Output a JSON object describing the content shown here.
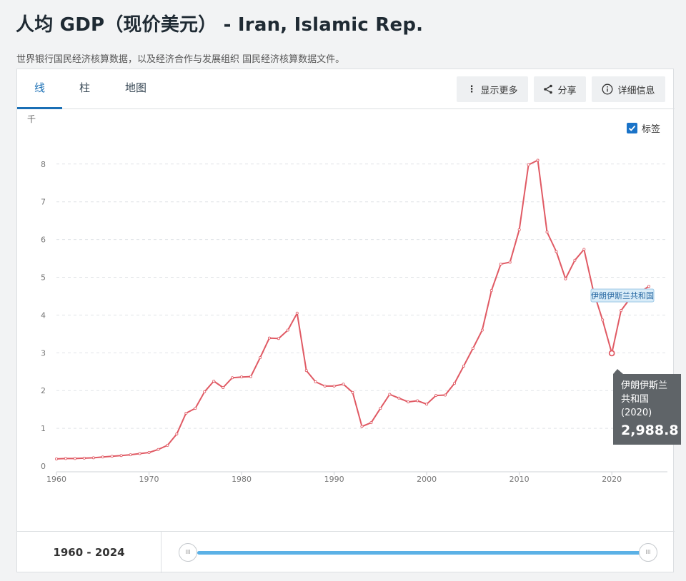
{
  "header": {
    "title": "人均 GDP（现价美元） - Iran, Islamic Rep.",
    "source": "世界银行国民经济核算数据，以及经济合作与发展组织 国民经济核算数据文件。"
  },
  "tabs": [
    {
      "label": "线",
      "active": true
    },
    {
      "label": "柱",
      "active": false
    },
    {
      "label": "地图",
      "active": false
    }
  ],
  "toolbar": {
    "more_label": "显示更多",
    "share_label": "分享",
    "details_label": "详细信息"
  },
  "labels_toggle": {
    "label": "标签",
    "checked": true
  },
  "range": {
    "label": "1960 - 2024"
  },
  "colors": {
    "line": "#e05a64",
    "accent": "#1a6fb5",
    "slider": "#5bb1e6",
    "tooltip_bg": "#5f6468"
  },
  "chart_data": {
    "type": "line",
    "unit_label": "千",
    "series": [
      {
        "name": "伊朗伊斯兰共和国",
        "x": [
          1960,
          1961,
          1962,
          1963,
          1964,
          1965,
          1966,
          1967,
          1968,
          1969,
          1970,
          1971,
          1972,
          1973,
          1974,
          1975,
          1976,
          1977,
          1978,
          1979,
          1980,
          1981,
          1982,
          1983,
          1984,
          1985,
          1986,
          1987,
          1988,
          1989,
          1990,
          1991,
          1992,
          1993,
          1994,
          1995,
          1996,
          1997,
          1998,
          1999,
          2000,
          2001,
          2002,
          2003,
          2004,
          2005,
          2006,
          2007,
          2008,
          2009,
          2010,
          2011,
          2012,
          2013,
          2014,
          2015,
          2016,
          2017,
          2018,
          2019,
          2020,
          2021,
          2022,
          2023,
          2024
        ],
        "y": [
          0.19,
          0.2,
          0.2,
          0.21,
          0.22,
          0.24,
          0.26,
          0.28,
          0.3,
          0.33,
          0.36,
          0.44,
          0.55,
          0.85,
          1.4,
          1.53,
          1.97,
          2.25,
          2.08,
          2.34,
          2.36,
          2.37,
          2.87,
          3.39,
          3.38,
          3.6,
          4.05,
          2.53,
          2.23,
          2.12,
          2.12,
          2.17,
          1.95,
          1.05,
          1.15,
          1.53,
          1.9,
          1.8,
          1.7,
          1.73,
          1.64,
          1.87,
          1.88,
          2.19,
          2.65,
          3.12,
          3.6,
          4.65,
          5.35,
          5.4,
          6.26,
          7.98,
          8.1,
          6.2,
          5.68,
          4.96,
          5.45,
          5.74,
          4.64,
          3.87,
          2.9888,
          4.12,
          4.45,
          4.6,
          4.76
        ]
      }
    ],
    "xlim": [
      1960,
      2024
    ],
    "ylim": [
      0,
      8.5
    ],
    "x_ticks": [
      "1960",
      "1970",
      "1980",
      "1990",
      "2000",
      "2010",
      "2020"
    ],
    "y_ticks": [
      "0",
      "1",
      "2",
      "3",
      "4",
      "5",
      "6",
      "7",
      "8"
    ],
    "grid": true,
    "end_label": "伊朗伊斯兰共和国",
    "tooltip": {
      "name": "伊朗伊斯兰共和国",
      "year": "(2020)",
      "value": "2,988.8",
      "highlight_x": 2020,
      "highlight_y": 2.9888
    }
  }
}
